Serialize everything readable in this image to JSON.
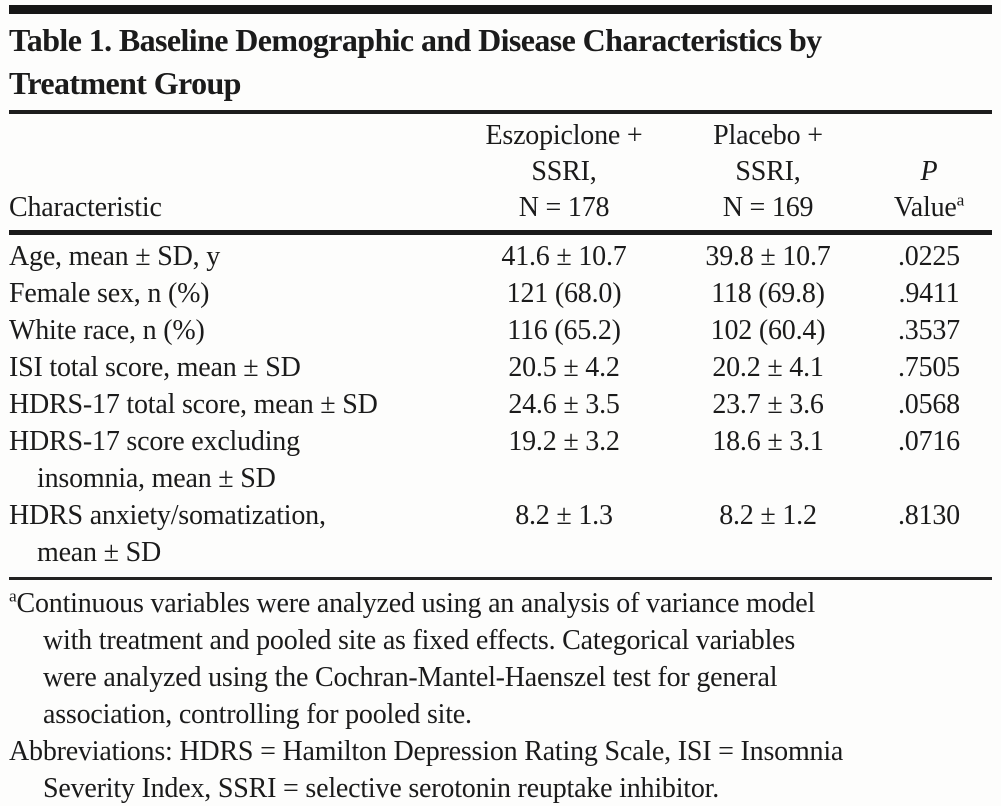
{
  "title": {
    "line1": "Table 1. Baseline Demographic and Disease Characteristics by",
    "line2": "Treatment Group"
  },
  "table": {
    "header": {
      "characteristic": "Characteristic",
      "eszopiclone_lines": [
        "Eszopiclone +",
        "SSRI,",
        "N = 178"
      ],
      "placebo_lines": [
        "Placebo +",
        "SSRI,",
        "N = 169"
      ],
      "p_symbol": "P",
      "p_label": "Value",
      "p_sup": "a"
    },
    "rows": [
      {
        "label": "Age, mean ± SD, y",
        "eszopiclone": "41.6 ± 10.7",
        "placebo": "39.8 ± 10.7",
        "p": ".0225"
      },
      {
        "label": "Female sex, n (%)",
        "eszopiclone": "121 (68.0)",
        "placebo": "118 (69.8)",
        "p": ".9411"
      },
      {
        "label": "White race, n (%)",
        "eszopiclone": "116 (65.2)",
        "placebo": "102 (60.4)",
        "p": ".3537"
      },
      {
        "label": "ISI total score, mean ± SD",
        "eszopiclone": "20.5 ± 4.2",
        "placebo": "20.2 ± 4.1",
        "p": ".7505"
      },
      {
        "label": "HDRS-17 total score, mean ± SD",
        "eszopiclone": "24.6 ± 3.5",
        "placebo": "23.7 ± 3.6",
        "p": ".0568"
      },
      {
        "label": "HDRS-17 score excluding",
        "label2": "insomnia, mean ± SD",
        "eszopiclone": "19.2 ± 3.2",
        "placebo": "18.6 ± 3.1",
        "p": ".0716"
      },
      {
        "label": "HDRS anxiety/somatization,",
        "label2": "mean ± SD",
        "eszopiclone": "8.2 ± 1.3",
        "placebo": "8.2 ± 1.2",
        "p": ".8130"
      }
    ]
  },
  "footnotes": {
    "a_marker": "a",
    "a_lines": [
      "Continuous variables were analyzed using an analysis of variance model",
      "with treatment and pooled site as fixed effects. Categorical variables",
      "were analyzed using the Cochran-Mantel-Haenszel test for general",
      "association, controlling for pooled site."
    ],
    "abbrev_lines": [
      "Abbreviations: HDRS = Hamilton Depression Rating Scale, ISI = Insomnia",
      "Severity Index, SSRI = selective serotonin reuptake inhibitor."
    ]
  }
}
